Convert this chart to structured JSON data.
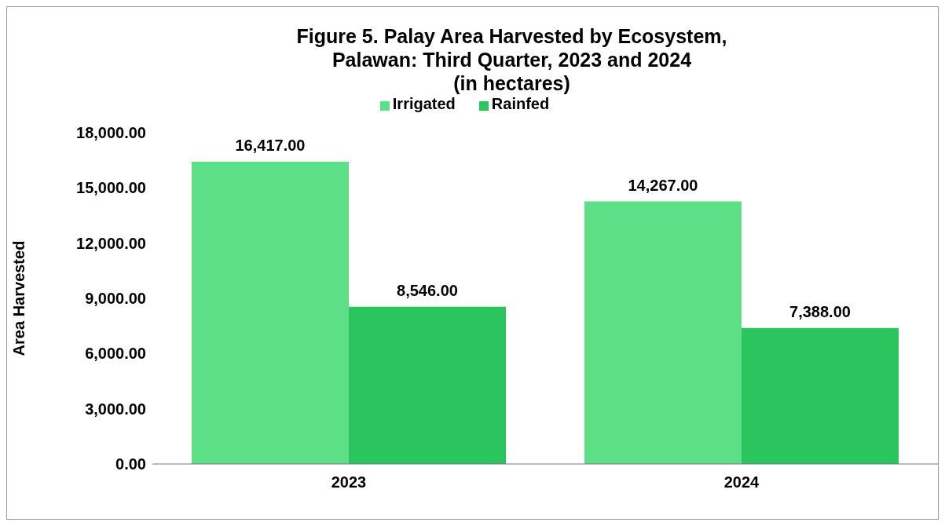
{
  "chart_data": {
    "type": "bar",
    "title": "Figure 5. Palay Area Harvested by Ecosystem,\nPalawan: Third Quarter, 2023 and 2024\n(in hectares)",
    "ylabel": "Area Harvested",
    "categories": [
      "2023",
      "2024"
    ],
    "series": [
      {
        "name": "Irrigated",
        "color": "#5ddf88",
        "values": [
          16417,
          14267
        ],
        "value_labels": [
          "16,417.00",
          "14,267.00"
        ]
      },
      {
        "name": "Rainfed",
        "color": "#2ac55f",
        "values": [
          8546,
          7388
        ],
        "value_labels": [
          "8,546.00",
          "7,388.00"
        ]
      }
    ],
    "ylim": [
      0,
      18000
    ],
    "yticks": [
      {
        "value": 0,
        "label": "0.00"
      },
      {
        "value": 3000,
        "label": "3,000.00"
      },
      {
        "value": 6000,
        "label": "6,000.00"
      },
      {
        "value": 9000,
        "label": "9,000.00"
      },
      {
        "value": 12000,
        "label": "12,000.00"
      },
      {
        "value": 15000,
        "label": "15,000.00"
      },
      {
        "value": 18000,
        "label": "18,000.00"
      }
    ],
    "grid": false,
    "legend": "top"
  }
}
